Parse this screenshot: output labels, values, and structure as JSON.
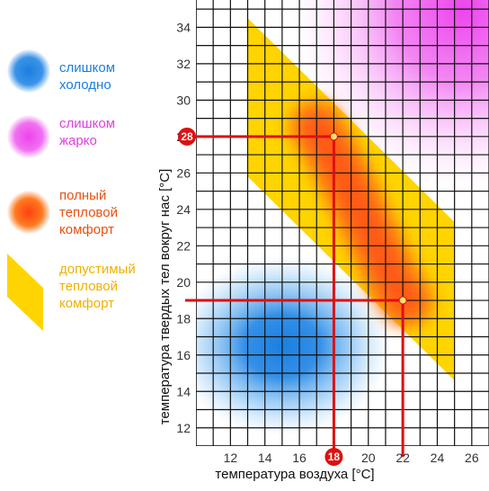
{
  "legend": [
    {
      "label": "слишком\nхолодно",
      "color": "#1a7fe0"
    },
    {
      "label": "слишком\nжарко",
      "color": "#ee44ee"
    },
    {
      "label": "полный\nтепловой\nкомфорт",
      "color": "#ff5a14"
    },
    {
      "label": "допустимый\nтепловой\nкомфорт",
      "color": "#ffd400"
    }
  ],
  "chart_data": {
    "type": "area",
    "xlabel": "температура воздуха [°C]",
    "ylabel": "температура твердых тел вокруг нас [°C]",
    "xlim": [
      10,
      27
    ],
    "ylim": [
      11,
      35.5
    ],
    "xticks": [
      12,
      14,
      16,
      18,
      20,
      22,
      24,
      26
    ],
    "yticks": [
      12,
      14,
      16,
      18,
      20,
      22,
      24,
      26,
      28,
      30,
      32,
      34
    ],
    "grid": true,
    "regions": [
      {
        "name": "слишком холодно",
        "color": "#1a7fe0",
        "center": [
          15,
          16.5
        ]
      },
      {
        "name": "слишком жарко",
        "color": "#ee44ee",
        "center": [
          25.5,
          35
        ]
      },
      {
        "name": "допустимый тепловой комфорт",
        "color": "#ffd400",
        "polygon": [
          [
            13,
            34.5
          ],
          [
            25,
            23.3
          ],
          [
            25,
            14.6
          ],
          [
            13,
            25.8
          ]
        ]
      },
      {
        "name": "полный тепловой комфорт",
        "color": "#ff5a14",
        "path": [
          [
            17,
            28.5
          ],
          [
            18.5,
            26
          ],
          [
            20,
            23
          ],
          [
            21.5,
            20
          ],
          [
            22.2,
            19
          ]
        ]
      }
    ],
    "reference_points": [
      {
        "x": 18,
        "y": 28
      },
      {
        "x": 22,
        "y": 19
      }
    ],
    "markers": [
      {
        "axis": "y",
        "value": 28,
        "label": "28"
      },
      {
        "axis": "x",
        "value": 18,
        "label": "18"
      }
    ]
  }
}
